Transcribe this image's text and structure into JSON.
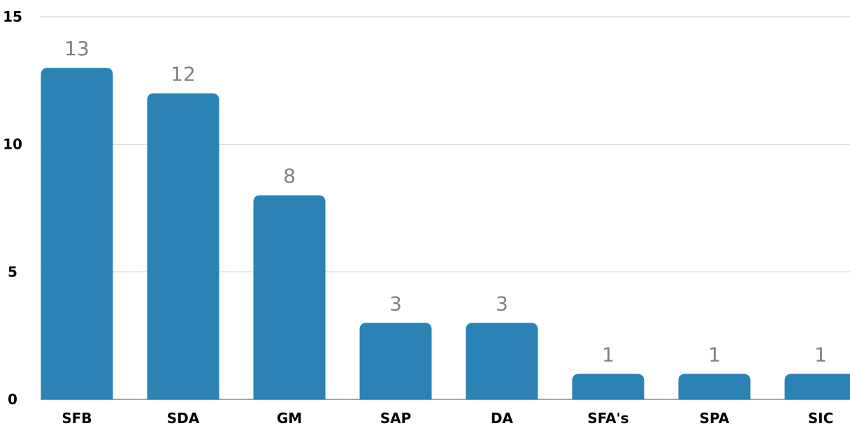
{
  "chart_data": {
    "type": "bar",
    "categories": [
      "SFB",
      "SDA",
      "GM",
      "SAP",
      "DA",
      "SFA's",
      "SPA",
      "SIC"
    ],
    "values": [
      13,
      12,
      8,
      3,
      3,
      1,
      1,
      1
    ],
    "y_ticks": [
      0,
      5,
      10,
      15
    ],
    "ylim": [
      0,
      15
    ],
    "grid": true,
    "data_labels": true,
    "bar_color": "#2a82b5"
  }
}
